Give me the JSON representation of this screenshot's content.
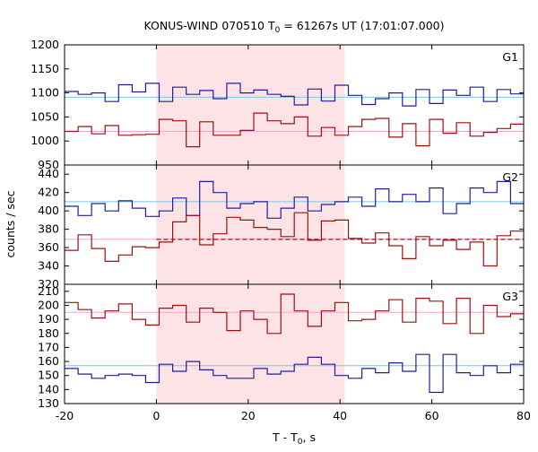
{
  "title": {
    "prefix": "KONUS-WIND 070510 T",
    "subscript": "0",
    "suffix": " = 61267s UT (17:01:07.000)"
  },
  "xlabel": {
    "prefix": "T - T",
    "subscript": "0",
    "suffix": ", s"
  },
  "ylabel": "counts / sec",
  "colors": {
    "blue": "#1f1f9e",
    "red": "#a01010",
    "cyan": "#77c8e8",
    "pink": "#f0a8cc",
    "shade": "#fde3e6",
    "axis": "#000000"
  },
  "chart_data": {
    "type": "line",
    "x_range": [
      -20,
      80
    ],
    "x_ticks": [
      -20,
      0,
      20,
      40,
      60,
      80
    ],
    "shaded_interval": [
      0,
      41
    ],
    "step_width": 2.944,
    "panels": [
      {
        "label": "G1",
        "ylim": [
          950,
          1200
        ],
        "y_ticks": [
          950,
          1000,
          1050,
          1100,
          1150,
          1200
        ],
        "series": [
          {
            "color": "blue",
            "x0": -20,
            "values": [
              1103,
              1097,
              1100,
              1082,
              1117,
              1102,
              1120,
              1082,
              1112,
              1097,
              1105,
              1088,
              1120,
              1100,
              1106,
              1097,
              1093,
              1075,
              1108,
              1083,
              1116,
              1095,
              1076,
              1088,
              1100,
              1073,
              1107,
              1078,
              1106,
              1095,
              1112,
              1082,
              1107,
              1098,
              1117
            ]
          },
          {
            "color": "red",
            "x0": -20,
            "values": [
              1020,
              1030,
              1015,
              1032,
              1012,
              1013,
              1014,
              1045,
              1042,
              988,
              1040,
              1012,
              1012,
              1022,
              1058,
              1042,
              1036,
              1050,
              1010,
              1028,
              1012,
              1030,
              1045,
              1047,
              1008,
              1036,
              990,
              1045,
              1016,
              1038,
              1010,
              1018,
              1026,
              1035,
              1022
            ]
          }
        ],
        "backgrounds": [
          {
            "color": "cyan",
            "y": 1091
          },
          {
            "color": "pink",
            "y": 1020
          }
        ]
      },
      {
        "label": "G2",
        "ylim": [
          320,
          450
        ],
        "y_ticks": [
          320,
          340,
          360,
          380,
          400,
          420,
          440
        ],
        "series": [
          {
            "color": "blue",
            "x0": -20,
            "values": [
              405,
              395,
              408,
              400,
              411,
              403,
              394,
              400,
              414,
              395,
              432,
              420,
              403,
              408,
              410,
              392,
              403,
              415,
              400,
              407,
              410,
              415,
              405,
              424,
              410,
              418,
              410,
              425,
              397,
              408,
              425,
              420,
              432,
              408,
              433
            ]
          },
          {
            "color": "red",
            "x0": -20,
            "values": [
              357,
              374,
              359,
              345,
              352,
              361,
              360,
              366,
              388,
              395,
              363,
              375,
              393,
              390,
              382,
              380,
              372,
              398,
              368,
              389,
              390,
              370,
              365,
              376,
              362,
              348,
              372,
              362,
              368,
              358,
              366,
              340,
              373,
              378,
              376
            ]
          }
        ],
        "backgrounds": [
          {
            "color": "cyan",
            "y": 410
          },
          {
            "color": "pink",
            "y": 369
          }
        ],
        "dashed_level": {
          "x_from": 0,
          "x_to": 80,
          "y": 369
        }
      },
      {
        "label": "G3",
        "ylim": [
          130,
          215
        ],
        "y_ticks": [
          130,
          140,
          150,
          160,
          170,
          180,
          190,
          200,
          210
        ],
        "series": [
          {
            "color": "red",
            "x0": -20,
            "values": [
              202,
              197,
              191,
              196,
              201,
              190,
              186,
              198,
              200,
              188,
              198,
              195,
              182,
              196,
              190,
              180,
              208,
              196,
              185,
              196,
              202,
              189,
              190,
              196,
              204,
              188,
              205,
              203,
              187,
              205,
              180,
              200,
              192,
              194,
              198
            ]
          },
          {
            "color": "blue",
            "x0": -20,
            "values": [
              155,
              151,
              148,
              150,
              151,
              150,
              145,
              158,
              153,
              160,
              154,
              150,
              148,
              148,
              155,
              151,
              153,
              158,
              163,
              158,
              150,
              148,
              155,
              152,
              159,
              153,
              165,
              138,
              165,
              152,
              150,
              157,
              152,
              158,
              158
            ]
          }
        ],
        "backgrounds": [
          {
            "color": "cyan",
            "y": 157
          },
          {
            "color": "pink",
            "y": 195
          }
        ]
      }
    ]
  }
}
